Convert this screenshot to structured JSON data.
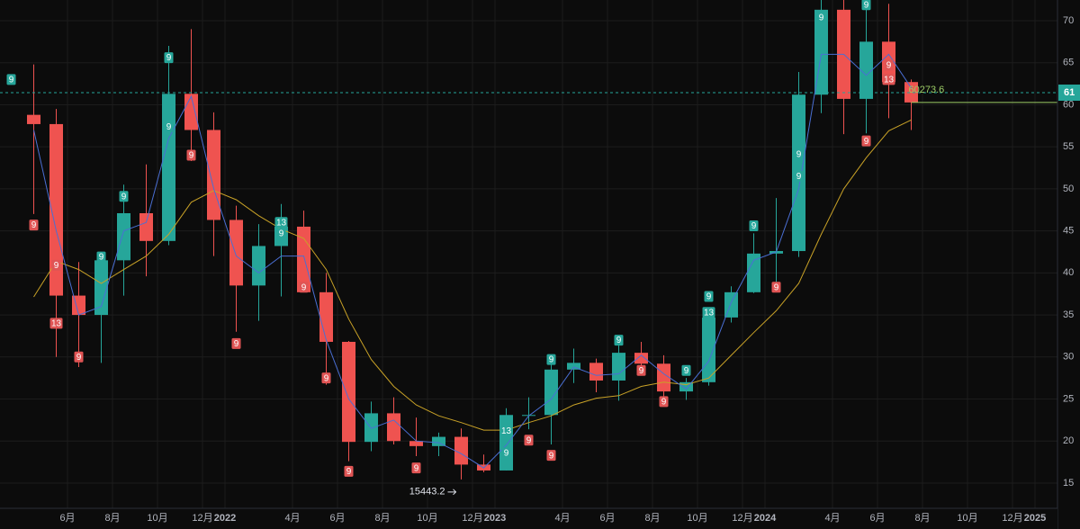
{
  "chart_data": {
    "type": "candlestick",
    "x": [
      "2021-04",
      "2021-05",
      "2021-06",
      "2021-07",
      "2021-08",
      "2021-09",
      "2021-10",
      "2021-11",
      "2021-12",
      "2022-01",
      "2022-02",
      "2022-03",
      "2022-04",
      "2022-05",
      "2022-06",
      "2022-07",
      "2022-08",
      "2022-09",
      "2022-10",
      "2022-11",
      "2022-12",
      "2023-01",
      "2023-02",
      "2023-03",
      "2023-04",
      "2023-05",
      "2023-06",
      "2023-07",
      "2023-08",
      "2023-09",
      "2023-10",
      "2023-11",
      "2023-12",
      "2024-01",
      "2024-02",
      "2024-03",
      "2024-04",
      "2024-05",
      "2024-06",
      "2024-07"
    ],
    "open": [
      58800,
      57700,
      37300,
      35000,
      41500,
      47100,
      43800,
      61300,
      57000,
      46300,
      38500,
      43200,
      45500,
      37700,
      31800,
      19900,
      23300,
      20000,
      19400,
      20500,
      17200,
      16500,
      23100,
      23100,
      28500,
      29300,
      27200,
      30500,
      29200,
      25900,
      27000,
      34700,
      37700,
      42300,
      42600,
      61200,
      71300,
      60700,
      67500,
      62700
    ],
    "high": [
      64800,
      59500,
      41300,
      42400,
      50500,
      52900,
      67000,
      69000,
      59100,
      48000,
      45800,
      48200,
      47400,
      40000,
      31900,
      24700,
      25200,
      22800,
      21000,
      21500,
      18400,
      23900,
      25200,
      29200,
      31000,
      29800,
      31400,
      31800,
      30200,
      27500,
      35000,
      38400,
      44700,
      48900,
      63900,
      73800,
      72800,
      71900,
      72000,
      63000
    ],
    "low": [
      47000,
      30000,
      28800,
      29300,
      37300,
      39600,
      43300,
      53300,
      42000,
      33000,
      34300,
      37200,
      37700,
      26700,
      17600,
      18800,
      19600,
      18200,
      18200,
      15443.2,
      16300,
      16500,
      21400,
      19600,
      26900,
      25800,
      24800,
      28900,
      25300,
      24900,
      26600,
      34100,
      37600,
      38500,
      41900,
      59000,
      56500,
      56600,
      58400,
      57000
    ],
    "close": [
      57700,
      37300,
      35000,
      41500,
      47100,
      43800,
      61300,
      57000,
      46300,
      38500,
      43200,
      45500,
      37700,
      31800,
      19900,
      23300,
      20000,
      19400,
      20500,
      17200,
      16500,
      23100,
      23100,
      28500,
      29300,
      27200,
      30500,
      29200,
      25900,
      27000,
      34700,
      37700,
      42300,
      42600,
      61200,
      71300,
      60700,
      67500,
      62700,
      60273.6
    ],
    "up_color": "#26a69a",
    "down_color": "#ef5350",
    "lines": [
      {
        "color": "#c9a227",
        "values": [
          37150,
          41400,
          40400,
          38750,
          40400,
          42000,
          44600,
          48400,
          49800,
          48700,
          46800,
          45200,
          44100,
          40400,
          34500,
          29700,
          26500,
          24300,
          23000,
          22200,
          21300,
          21300,
          22200,
          23000,
          24300,
          25100,
          25400,
          26500,
          27000,
          26700,
          27500,
          30200,
          32900,
          35500,
          38750,
          44600,
          50000,
          53700,
          56900,
          58200
        ]
      },
      {
        "color": "#4a6fd4",
        "values": [
          57000,
          45000,
          35000,
          36000,
          45000,
          46000,
          56000,
          61000,
          50000,
          42000,
          40000,
          42000,
          42000,
          32000,
          25000,
          21500,
          22500,
          20000,
          19800,
          18500,
          16800,
          19500,
          23000,
          25000,
          28800,
          27800,
          28000,
          30200,
          28000,
          26200,
          29500,
          36500,
          41500,
          42500,
          50000,
          66000,
          66000,
          63500,
          66000,
          62000
        ]
      }
    ],
    "xlim": [
      "2021-03",
      "2025-02"
    ],
    "xticks": [
      {
        "value": "2021-06",
        "label": "6月"
      },
      {
        "value": "2021-08",
        "label": "8月"
      },
      {
        "value": "2021-10",
        "label": "10月"
      },
      {
        "value": "2021-12",
        "label": "12月"
      },
      {
        "value": "2022-01",
        "label": "2022"
      },
      {
        "value": "2022-04",
        "label": "4月"
      },
      {
        "value": "2022-06",
        "label": "6月"
      },
      {
        "value": "2022-08",
        "label": "8月"
      },
      {
        "value": "2022-10",
        "label": "10月"
      },
      {
        "value": "2022-12",
        "label": "12月"
      },
      {
        "value": "2023-01",
        "label": "2023"
      },
      {
        "value": "2023-04",
        "label": "4月"
      },
      {
        "value": "2023-06",
        "label": "6月"
      },
      {
        "value": "2023-08",
        "label": "8月"
      },
      {
        "value": "2023-10",
        "label": "10月"
      },
      {
        "value": "2023-12",
        "label": "12月"
      },
      {
        "value": "2024-01",
        "label": "2024"
      },
      {
        "value": "2024-04",
        "label": "4月"
      },
      {
        "value": "2024-06",
        "label": "6月"
      },
      {
        "value": "2024-08",
        "label": "8月"
      },
      {
        "value": "2024-10",
        "label": "10月"
      },
      {
        "value": "2024-12",
        "label": "12月"
      },
      {
        "value": "2025-01",
        "label": "2025"
      }
    ],
    "ylim": [
      12000,
      72460
    ],
    "yticks": [
      {
        "value": 15000,
        "label": "15"
      },
      {
        "value": 20000,
        "label": "20"
      },
      {
        "value": 25000,
        "label": "25"
      },
      {
        "value": 30000,
        "label": "30"
      },
      {
        "value": 35000,
        "label": "35"
      },
      {
        "value": 40000,
        "label": "40"
      },
      {
        "value": 45000,
        "label": "45"
      },
      {
        "value": 50000,
        "label": "50"
      },
      {
        "value": 55000,
        "label": "55"
      },
      {
        "value": 60000,
        "label": "60"
      },
      {
        "value": 65000,
        "label": "65"
      },
      {
        "value": 70000,
        "label": "70"
      }
    ],
    "grid": true,
    "price_line": {
      "value": 61440,
      "label": "61",
      "color": "#26a69a"
    },
    "last_price_color": "#9ccc65",
    "markers": [
      {
        "x": "2021-03",
        "y": 63000,
        "label": "9",
        "color": "#26a69a"
      },
      {
        "x": "2021-10",
        "y": 65600,
        "label": "9",
        "color": "#26a69a"
      },
      {
        "x": "2021-10",
        "y": 57400,
        "label": "9",
        "color": "#26a69a"
      },
      {
        "x": "2021-08",
        "y": 49100,
        "label": "9",
        "color": "#26a69a"
      },
      {
        "x": "2021-07",
        "y": 41900,
        "label": "9",
        "color": "#26a69a"
      },
      {
        "x": "2022-03",
        "y": 46000,
        "label": "13",
        "color": "#26a69a"
      },
      {
        "x": "2022-03",
        "y": 44700,
        "label": "9",
        "color": "#26a69a"
      },
      {
        "x": "2023-01",
        "y": 18600,
        "label": "9",
        "color": "#26a69a"
      },
      {
        "x": "2023-01",
        "y": 21200,
        "label": "13",
        "color": "#26a69a"
      },
      {
        "x": "2023-03",
        "y": 29700,
        "label": "9",
        "color": "#26a69a"
      },
      {
        "x": "2023-06",
        "y": 32000,
        "label": "9",
        "color": "#26a69a"
      },
      {
        "x": "2023-09",
        "y": 28400,
        "label": "9",
        "color": "#26a69a"
      },
      {
        "x": "2023-10",
        "y": 37200,
        "label": "9",
        "color": "#26a69a"
      },
      {
        "x": "2023-10",
        "y": 35300,
        "label": "13",
        "color": "#26a69a"
      },
      {
        "x": "2023-12",
        "y": 45600,
        "label": "9",
        "color": "#26a69a"
      },
      {
        "x": "2024-02",
        "y": 54100,
        "label": "9",
        "color": "#26a69a"
      },
      {
        "x": "2024-02",
        "y": 51500,
        "label": "9",
        "color": "#26a69a"
      },
      {
        "x": "2024-03",
        "y": 70400,
        "label": "9",
        "color": "#26a69a"
      },
      {
        "x": "2024-05",
        "y": 71900,
        "label": "9",
        "color": "#26a69a"
      },
      {
        "x": "2021-04",
        "y": 45700,
        "label": "9",
        "color": "#e05454"
      },
      {
        "x": "2021-05",
        "y": 40900,
        "label": "9",
        "color": "#e05454"
      },
      {
        "x": "2021-05",
        "y": 34000,
        "label": "13",
        "color": "#e05454"
      },
      {
        "x": "2021-06",
        "y": 30000,
        "label": "9",
        "color": "#e05454"
      },
      {
        "x": "2021-11",
        "y": 54000,
        "label": "9",
        "color": "#e05454"
      },
      {
        "x": "2022-01",
        "y": 31600,
        "label": "9",
        "color": "#e05454"
      },
      {
        "x": "2022-04",
        "y": 38300,
        "label": "9",
        "color": "#e05454"
      },
      {
        "x": "2022-05",
        "y": 27500,
        "label": "9",
        "color": "#e05454"
      },
      {
        "x": "2022-06",
        "y": 16400,
        "label": "9",
        "color": "#e05454"
      },
      {
        "x": "2022-09",
        "y": 16800,
        "label": "9",
        "color": "#e05454"
      },
      {
        "x": "2023-02",
        "y": 20100,
        "label": "9",
        "color": "#e05454"
      },
      {
        "x": "2023-03",
        "y": 18300,
        "label": "9",
        "color": "#e05454"
      },
      {
        "x": "2023-07",
        "y": 28400,
        "label": "9",
        "color": "#e05454"
      },
      {
        "x": "2023-08",
        "y": 24700,
        "label": "9",
        "color": "#e05454"
      },
      {
        "x": "2024-01",
        "y": 38300,
        "label": "9",
        "color": "#e05454"
      },
      {
        "x": "2024-05",
        "y": 55700,
        "label": "9",
        "color": "#e05454"
      },
      {
        "x": "2024-06",
        "y": 64700,
        "label": "9",
        "color": "#e05454"
      },
      {
        "x": "2024-06",
        "y": 63000,
        "label": "13",
        "color": "#e05454"
      }
    ]
  }
}
